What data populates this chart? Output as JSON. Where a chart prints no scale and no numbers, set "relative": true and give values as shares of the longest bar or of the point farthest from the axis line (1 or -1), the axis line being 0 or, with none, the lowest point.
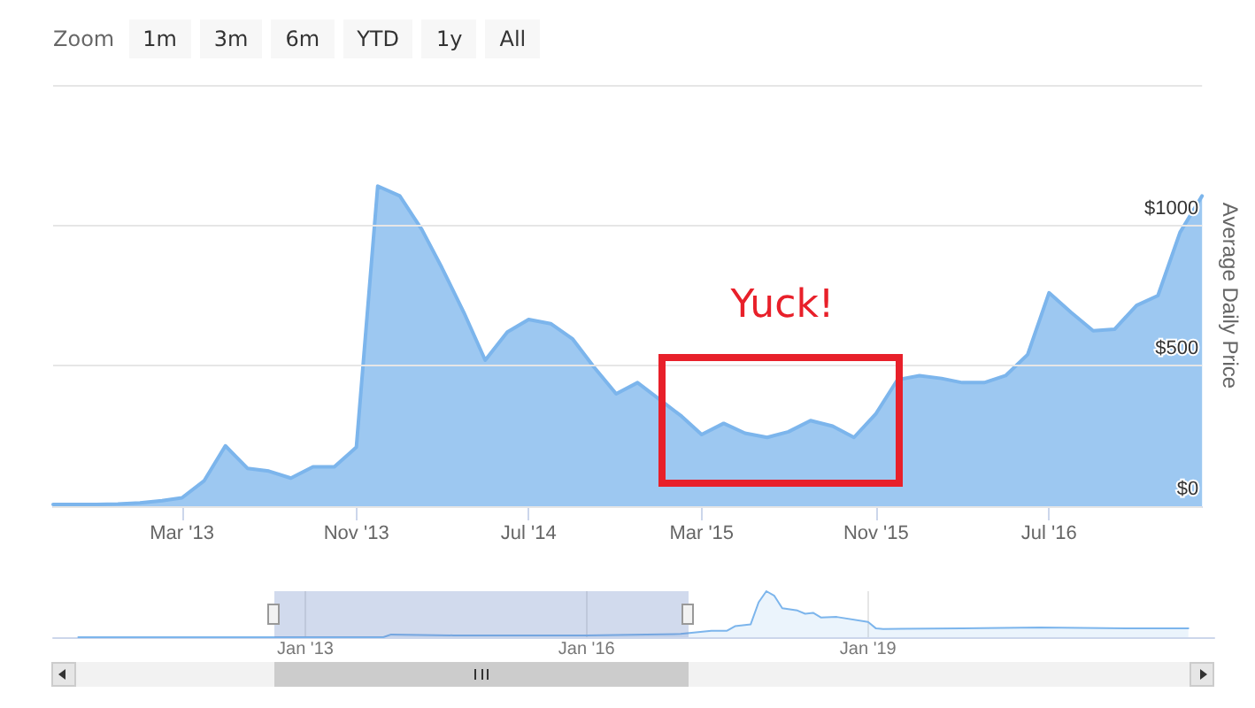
{
  "chart_data": [
    {
      "type": "area",
      "ylabel": "Average Daily Price",
      "annotations": [
        "Zoom",
        "1m",
        "3m",
        "6m",
        "YTD",
        "1y",
        "All",
        "Yuck!"
      ],
      "x": [
        "2012-09",
        "2012-10",
        "2012-11",
        "2012-12",
        "2013-01",
        "2013-02",
        "2013-03",
        "2013-04",
        "2013-05",
        "2013-06",
        "2013-07",
        "2013-08",
        "2013-09",
        "2013-10",
        "2013-11",
        "2013-12",
        "2014-01",
        "2014-02",
        "2014-03",
        "2014-04",
        "2014-05",
        "2014-06",
        "2014-07",
        "2014-08",
        "2014-09",
        "2014-10",
        "2014-11",
        "2014-12",
        "2015-01",
        "2015-02",
        "2015-03",
        "2015-04",
        "2015-05",
        "2015-06",
        "2015-07",
        "2015-08",
        "2015-09",
        "2015-10",
        "2015-11",
        "2015-12",
        "2016-01",
        "2016-02",
        "2016-03",
        "2016-04",
        "2016-05",
        "2016-06",
        "2016-07",
        "2016-08",
        "2016-09",
        "2016-10",
        "2016-11",
        "2016-12",
        "2017-01",
        "2017-02"
      ],
      "series": [
        {
          "color": "#7cb5ec",
          "values": [
            6,
            6,
            6,
            8,
            12,
            20,
            30,
            90,
            215,
            135,
            125,
            100,
            140,
            140,
            210,
            1140,
            1105,
            985,
            850,
            690,
            520,
            620,
            665,
            650,
            595,
            495,
            400,
            440,
            380,
            320,
            255,
            295,
            260,
            245,
            265,
            305,
            285,
            245,
            330,
            450,
            465,
            455,
            440,
            440,
            465,
            540,
            760,
            690,
            625,
            630,
            715,
            750,
            975,
            1105
          ]
        }
      ],
      "xlim": [
        "2012-09",
        "2017-02"
      ],
      "xticks": [
        {
          "value": "2013-03",
          "label": "Mar '13"
        },
        {
          "value": "2013-11",
          "label": "Nov '13"
        },
        {
          "value": "2014-07",
          "label": "Jul '14"
        },
        {
          "value": "2015-03",
          "label": "Mar '15"
        },
        {
          "value": "2015-11",
          "label": "Nov '15"
        },
        {
          "value": "2016-07",
          "label": "Jul '16"
        }
      ],
      "ylim": [
        0,
        1500
      ],
      "yticks": [
        {
          "value": 0,
          "label": "$0"
        },
        {
          "value": 500,
          "label": "$500"
        },
        {
          "value": 1000,
          "label": "$1000"
        },
        {
          "value": 1500,
          "label": null
        }
      ],
      "grid": "y",
      "marker": "none"
    },
    {
      "type": "area",
      "relative": true,
      "tick_labels": "x",
      "grid": "x",
      "marker": "none",
      "x": [
        "2010-08",
        "2013-11",
        "2013-12",
        "2014-08",
        "2016-01",
        "2017-01",
        "2017-05",
        "2017-07",
        "2017-08",
        "2017-10",
        "2017-11",
        "2017-12",
        "2018-01",
        "2018-02",
        "2018-04",
        "2018-05",
        "2018-06",
        "2018-07",
        "2018-09",
        "2019-01",
        "2019-02",
        "2019-03",
        "2020-01",
        "2020-11",
        "2021-10",
        "2022-06"
      ],
      "series": [
        {
          "color": "#7cb5ec",
          "values": [
            0,
            0,
            0.06,
            0.04,
            0.04,
            0.07,
            0.14,
            0.14,
            0.24,
            0.28,
            0.76,
            1,
            0.9,
            0.63,
            0.58,
            0.51,
            0.53,
            0.43,
            0.44,
            0.33,
            0.19,
            0.18,
            0.19,
            0.21,
            0.19,
            0.19
          ]
        }
      ],
      "xlim": [
        "2010-04-25",
        "2022-09-10"
      ],
      "xticks": [
        {
          "value": "2013-01",
          "label": "Jan '13"
        },
        {
          "value": "2016-01",
          "label": "Jan '16"
        },
        {
          "value": "2019-01",
          "label": "Jan '19"
        }
      ]
    }
  ]
}
